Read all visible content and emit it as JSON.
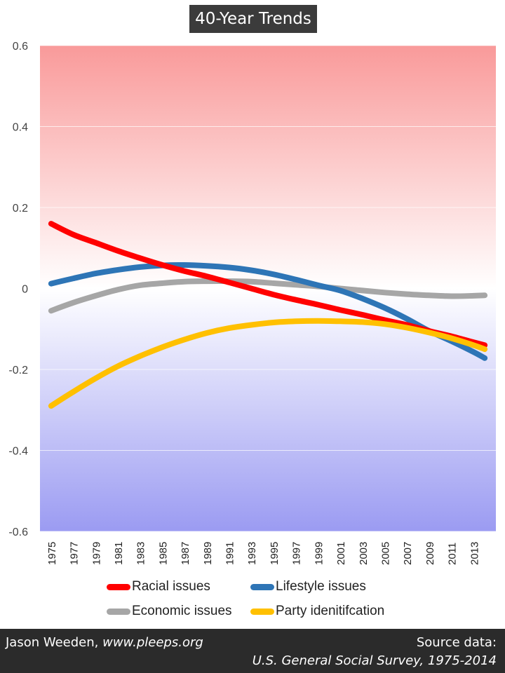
{
  "chart_data": {
    "type": "line",
    "title": "40-Year Trends",
    "xlabel": "",
    "ylabel": "",
    "ylim": [
      -0.6,
      0.6
    ],
    "yticks": [
      -0.6,
      -0.4,
      -0.2,
      0,
      0.2,
      0.4,
      0.6
    ],
    "ytick_labels": [
      "-0.6",
      "-0.4",
      "-0.2",
      "0",
      "0.2",
      "0.4",
      "0.6"
    ],
    "categories": [
      "1975",
      "1977",
      "1979",
      "1981",
      "1983",
      "1985",
      "1987",
      "1989",
      "1991",
      "1993",
      "1995",
      "1997",
      "1999",
      "2001",
      "2003",
      "2005",
      "2007",
      "2009",
      "2011",
      "2013"
    ],
    "x": [
      1975,
      1977,
      1979,
      1981,
      1983,
      1985,
      1987,
      1989,
      1991,
      1993,
      1995,
      1997,
      1999,
      2001,
      2003,
      2005,
      2007,
      2009,
      2011,
      2013,
      2014
    ],
    "grid": true,
    "legend_position": "bottom",
    "background": "vertical gradient from red (top) through white (zero) to blue (bottom)",
    "series": [
      {
        "name": "Racial issues",
        "color": "#ff0000",
        "values": [
          0.16,
          0.133,
          0.113,
          0.093,
          0.075,
          0.058,
          0.043,
          0.03,
          0.015,
          0.0,
          -0.015,
          -0.028,
          -0.04,
          -0.053,
          -0.065,
          -0.078,
          -0.09,
          -0.105,
          -0.118,
          -0.133,
          -0.14
        ]
      },
      {
        "name": "Lifestyle issues",
        "color": "#2e75b6",
        "values": [
          0.012,
          0.025,
          0.037,
          0.046,
          0.053,
          0.057,
          0.058,
          0.056,
          0.052,
          0.045,
          0.035,
          0.022,
          0.008,
          -0.005,
          -0.025,
          -0.048,
          -0.075,
          -0.105,
          -0.13,
          -0.157,
          -0.172
        ]
      },
      {
        "name": "Economic issues",
        "color": "#a6a6a6",
        "values": [
          -0.055,
          -0.035,
          -0.018,
          -0.003,
          0.008,
          0.013,
          0.017,
          0.018,
          0.018,
          0.017,
          0.013,
          0.009,
          0.005,
          0.0,
          -0.005,
          -0.01,
          -0.014,
          -0.017,
          -0.019,
          -0.018,
          -0.017
        ]
      },
      {
        "name": "Party idenitifcation",
        "color": "#ffc000",
        "values": [
          -0.29,
          -0.255,
          -0.222,
          -0.192,
          -0.167,
          -0.145,
          -0.126,
          -0.11,
          -0.098,
          -0.09,
          -0.084,
          -0.081,
          -0.08,
          -0.081,
          -0.083,
          -0.088,
          -0.097,
          -0.109,
          -0.123,
          -0.14,
          -0.15
        ]
      }
    ]
  },
  "footer": {
    "author": "Jason Weeden, ",
    "website": "www.pleeps.org",
    "source_label": "Source data:",
    "source": "U.S. General Social Survey, 1975-2014"
  }
}
